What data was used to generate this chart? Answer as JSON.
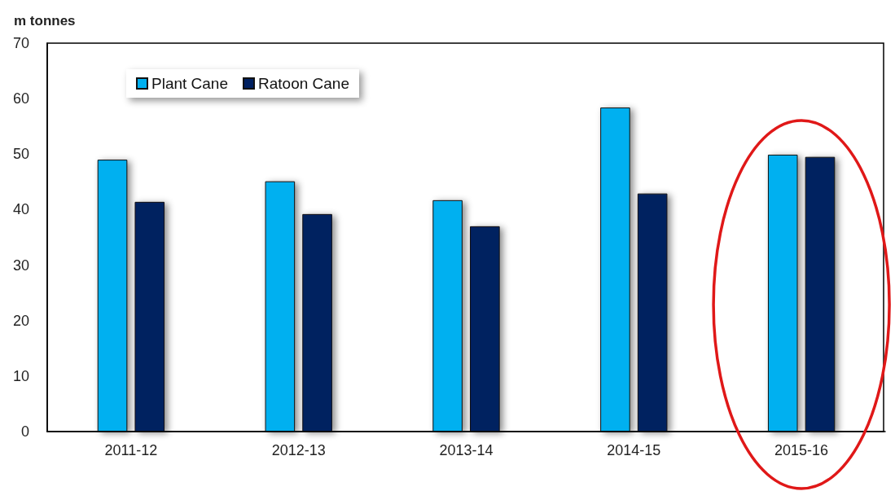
{
  "chart_data": {
    "type": "bar",
    "ylabel": "m tonnes",
    "categories": [
      "2011-12",
      "2012-13",
      "2013-14",
      "2014-15",
      "2015-16"
    ],
    "series": [
      {
        "name": "Plant Cane",
        "color": "#00b0f0",
        "values": [
          49.0,
          45.1,
          41.7,
          58.4,
          49.9
        ]
      },
      {
        "name": "Ratoon Cane",
        "color": "#002060",
        "values": [
          41.4,
          39.2,
          37.0,
          42.9,
          49.5
        ]
      }
    ],
    "ylim": [
      0,
      70
    ],
    "yticks": [
      0,
      10,
      20,
      30,
      40,
      50,
      60,
      70
    ],
    "grid": false,
    "legend": "top left"
  }
}
